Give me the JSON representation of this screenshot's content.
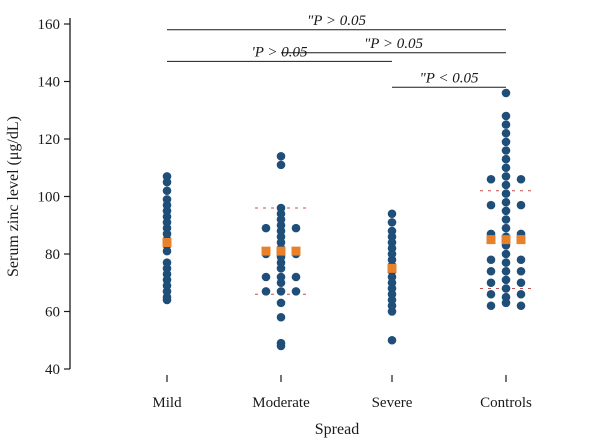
{
  "chart_data": {
    "type": "scatter",
    "subtype": "dot-plot",
    "xlabel": "Spread",
    "ylabel": "Serum zinc level (μg/dL)",
    "ylim": [
      40,
      160
    ],
    "yticks": [
      40,
      60,
      80,
      100,
      120,
      140,
      160
    ],
    "categories": [
      "Mild",
      "Moderate",
      "Severe",
      "Controls"
    ],
    "colors": {
      "points": "#1f4e79",
      "mean": "#e8812c",
      "sd": "#c0504d",
      "axis": "#1a1a1a"
    },
    "groups": [
      {
        "category": "Mild",
        "columns": [
          [
            107,
            105,
            102,
            99,
            97,
            95,
            93,
            91,
            89,
            87,
            85,
            83,
            81,
            77,
            75,
            73,
            71,
            69,
            67,
            65,
            64
          ]
        ],
        "mean": 84,
        "sd": null
      },
      {
        "category": "Moderate",
        "columns": [
          [
            89,
            80,
            72,
            67
          ],
          [
            114,
            111,
            96,
            94,
            92,
            90,
            88,
            86,
            84,
            82,
            79,
            77,
            75,
            72,
            70,
            67,
            63,
            58,
            49,
            48
          ],
          [
            89,
            80,
            72,
            67
          ]
        ],
        "mean": 81,
        "sd": [
          66,
          96
        ]
      },
      {
        "category": "Severe",
        "columns": [
          [
            94,
            91,
            88,
            86,
            84,
            82,
            80,
            78,
            76,
            74,
            72,
            70,
            68,
            66,
            64,
            62,
            60,
            50
          ]
        ],
        "mean": 75,
        "sd": null
      },
      {
        "category": "Controls",
        "columns": [
          [
            106,
            97,
            87,
            78,
            74,
            70,
            66,
            62
          ],
          [
            136,
            128,
            125,
            122,
            119,
            116,
            113,
            110,
            107,
            104,
            101,
            98,
            95,
            92,
            89,
            86,
            83,
            80,
            77,
            74,
            71,
            68,
            65,
            63
          ],
          [
            106,
            97,
            87,
            78,
            74,
            70,
            66,
            62
          ]
        ],
        "mean": 85,
        "sd": [
          68,
          102
        ]
      }
    ],
    "comparisons": [
      {
        "from": "Mild",
        "to": "Controls",
        "y": 158,
        "label": "\"P > 0.05"
      },
      {
        "from": "Moderate",
        "to": "Controls",
        "y": 150,
        "label": "\"P > 0.05"
      },
      {
        "from": "Mild",
        "to": "Severe",
        "y": 147,
        "label": "'P > 0.05"
      },
      {
        "from": "Severe",
        "to": "Controls",
        "y": 138,
        "label": "\"P < 0.05"
      }
    ]
  }
}
